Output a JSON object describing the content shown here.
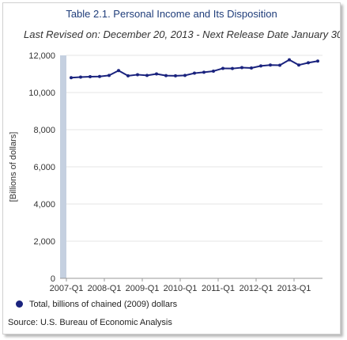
{
  "chart_data": {
    "type": "line",
    "title": "Table 2.1. Personal Income and Its Disposition",
    "subtitle": "Last Revised on: December 20, 2013 - Next Release Date January 30",
    "ylabel": "[Billions of dollars]",
    "xlabel": "",
    "ylim": [
      0,
      12000
    ],
    "yticks": [
      "0",
      "2,000",
      "4,000",
      "6,000",
      "8,000",
      "10,000",
      "12,000"
    ],
    "yticks_values": [
      0,
      2000,
      4000,
      6000,
      8000,
      10000,
      12000
    ],
    "x": [
      "2007-Q1",
      "2007-Q2",
      "2007-Q3",
      "2007-Q4",
      "2008-Q1",
      "2008-Q2",
      "2008-Q3",
      "2008-Q4",
      "2009-Q1",
      "2009-Q2",
      "2009-Q3",
      "2009-Q4",
      "2010-Q1",
      "2010-Q2",
      "2010-Q3",
      "2010-Q4",
      "2011-Q1",
      "2011-Q2",
      "2011-Q3",
      "2011-Q4",
      "2012-Q1",
      "2012-Q2",
      "2012-Q3",
      "2012-Q4",
      "2013-Q1",
      "2013-Q2",
      "2013-Q3"
    ],
    "xticks": [
      "2007-Q1",
      "2008-Q1",
      "2009-Q1",
      "2010-Q1",
      "2011-Q1",
      "2012-Q1",
      "2013-Q1"
    ],
    "series": [
      {
        "name": "Total, billions of chained (2009) dollars",
        "color": "#1a237e",
        "values": [
          10800,
          10830,
          10850,
          10860,
          10920,
          11180,
          10900,
          10960,
          10920,
          11000,
          10910,
          10900,
          10920,
          11040,
          11090,
          11150,
          11300,
          11290,
          11340,
          11320,
          11430,
          11480,
          11470,
          11760,
          11480,
          11600,
          11690
        ]
      }
    ],
    "grid": true,
    "legend_position": "bottom-left"
  },
  "legend": {
    "label": "Total, billions of chained (2009) dollars"
  },
  "source": "Source: U.S. Bureau of Economic Analysis"
}
